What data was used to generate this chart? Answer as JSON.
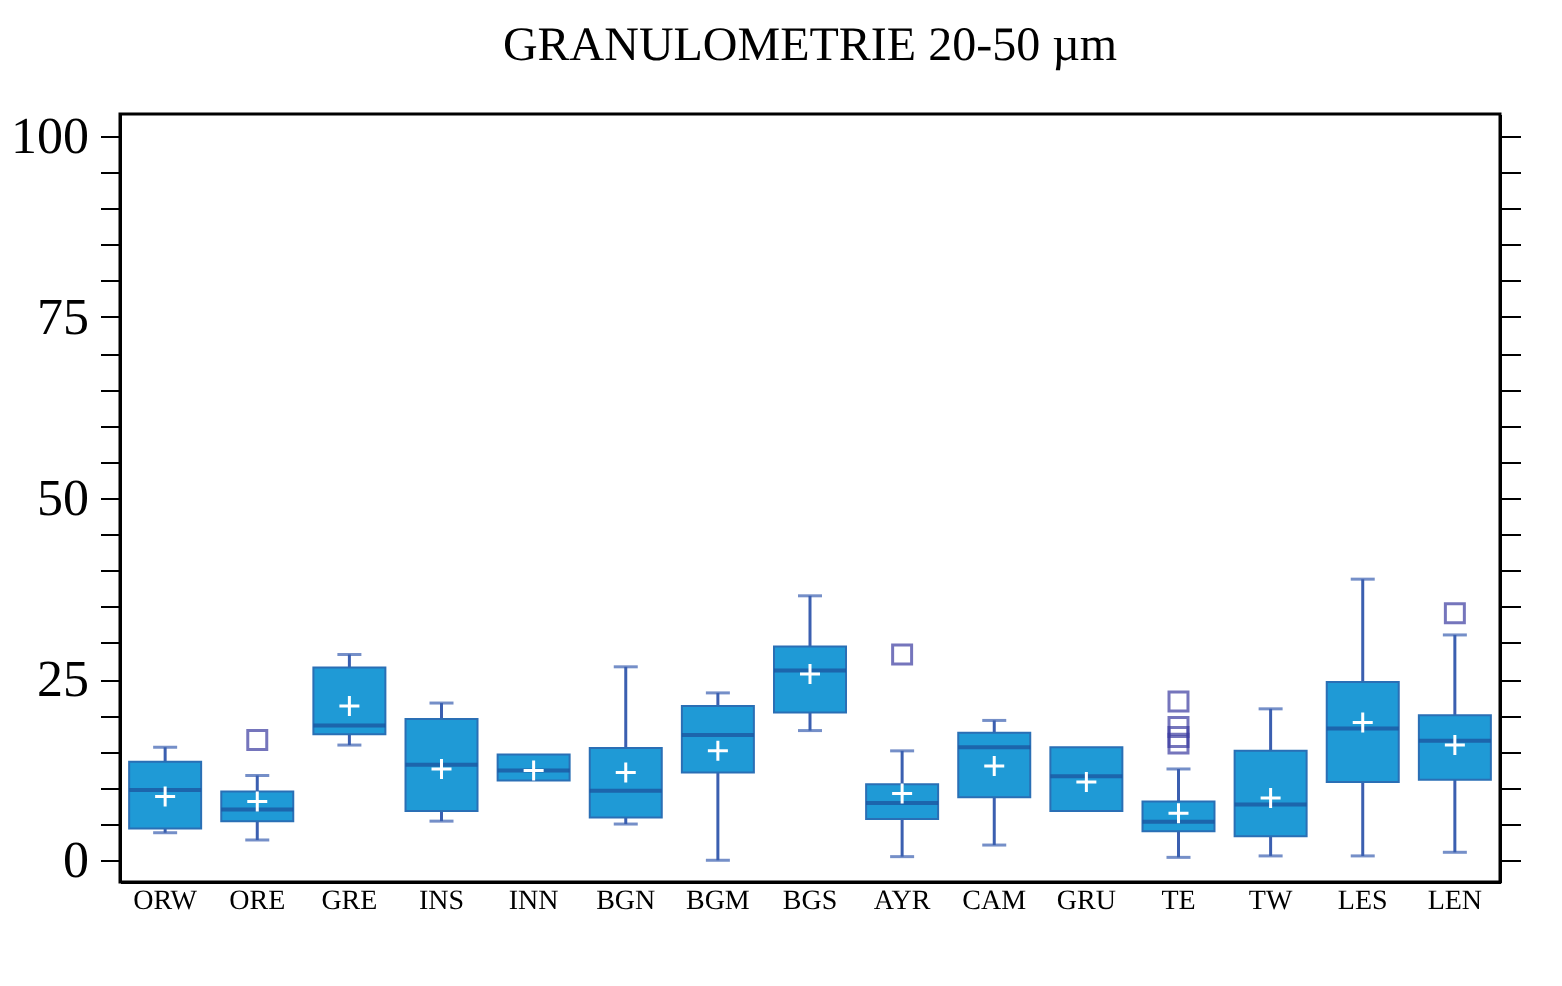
{
  "chart_data": {
    "type": "box",
    "title": "GRANULOMETRIE 20-50 µm",
    "categories": [
      "ORW",
      "ORE",
      "GRE",
      "INS",
      "INN",
      "BGN",
      "BGM",
      "BGS",
      "AYR",
      "CAM",
      "GRU",
      "TE",
      "TW",
      "LES",
      "LEN"
    ],
    "color": "#1f9ad6",
    "boxes": [
      {
        "low": 3.8,
        "q1": 4.4,
        "median": 9.7,
        "q3": 13.6,
        "high": 15.6,
        "mean": 8.8
      },
      {
        "low": 2.8,
        "q1": 5.4,
        "median": 7.0,
        "q3": 9.5,
        "high": 11.7,
        "mean": 8.1,
        "outliers": [
          16.6
        ]
      },
      {
        "low": 15.9,
        "q1": 17.4,
        "median": 18.6,
        "q3": 26.6,
        "high": 28.4,
        "mean": 21.3
      },
      {
        "low": 5.4,
        "q1": 6.8,
        "median": 13.2,
        "q3": 19.5,
        "high": 21.7,
        "mean": 12.6
      },
      {
        "low": 11.0,
        "q1": 11.0,
        "median": 12.4,
        "q3": 14.6,
        "high": 14.6,
        "mean": 12.4
      },
      {
        "low": 5.0,
        "q1": 5.9,
        "median": 9.6,
        "q3": 15.5,
        "high": 26.7,
        "mean": 12.1
      },
      {
        "low": 0,
        "q1": 12.1,
        "median": 17.3,
        "q3": 21.3,
        "high": 23.1,
        "mean": 15.1
      },
      {
        "low": 17.9,
        "q1": 20.4,
        "median": 26.2,
        "q3": 29.5,
        "high": 36.5,
        "mean": 25.7
      },
      {
        "low": 0.5,
        "q1": 5.7,
        "median": 7.9,
        "q3": 10.5,
        "high": 15.1,
        "mean": 9.2,
        "outliers": [
          28.4
        ]
      },
      {
        "low": 2.1,
        "q1": 8.7,
        "median": 15.6,
        "q3": 17.6,
        "high": 19.3,
        "mean": 13.0
      },
      {
        "low": 6.8,
        "q1": 6.8,
        "median": 11.6,
        "q3": 15.6,
        "high": 15.6,
        "mean": 10.8
      },
      {
        "low": 0.4,
        "q1": 4.0,
        "median": 5.3,
        "q3": 8.1,
        "high": 12.6,
        "mean": 6.5,
        "outliers": [
          16.1,
          17.0,
          18.4,
          21.9
        ]
      },
      {
        "low": 0.6,
        "q1": 3.3,
        "median": 7.7,
        "q3": 15.1,
        "high": 20.9,
        "mean": 8.6
      },
      {
        "low": 0.6,
        "q1": 10.8,
        "median": 18.2,
        "q3": 24.6,
        "high": 38.8,
        "mean": 19.0
      },
      {
        "low": 1.1,
        "q1": 11.1,
        "median": 16.5,
        "q3": 20.0,
        "high": 31.1,
        "mean": 15.9,
        "outliers": [
          34.1
        ]
      }
    ],
    "ylim": [
      -3,
      103
    ],
    "yticks": [
      0,
      {
        "value": 5,
        "label": null
      },
      {
        "value": 10,
        "label": null
      },
      {
        "value": 15,
        "label": null
      },
      {
        "value": 20,
        "label": null
      },
      25,
      {
        "value": 30,
        "label": null
      },
      {
        "value": 35,
        "label": null
      },
      {
        "value": 40,
        "label": null
      },
      {
        "value": 45,
        "label": null
      },
      50,
      {
        "value": 55,
        "label": null
      },
      {
        "value": 60,
        "label": null
      },
      {
        "value": 65,
        "label": null
      },
      {
        "value": 70,
        "label": null
      },
      75,
      {
        "value": 80,
        "label": null
      },
      {
        "value": 85,
        "label": null
      },
      {
        "value": 90,
        "label": null
      },
      {
        "value": 95,
        "label": null
      },
      100
    ],
    "grid": false
  }
}
